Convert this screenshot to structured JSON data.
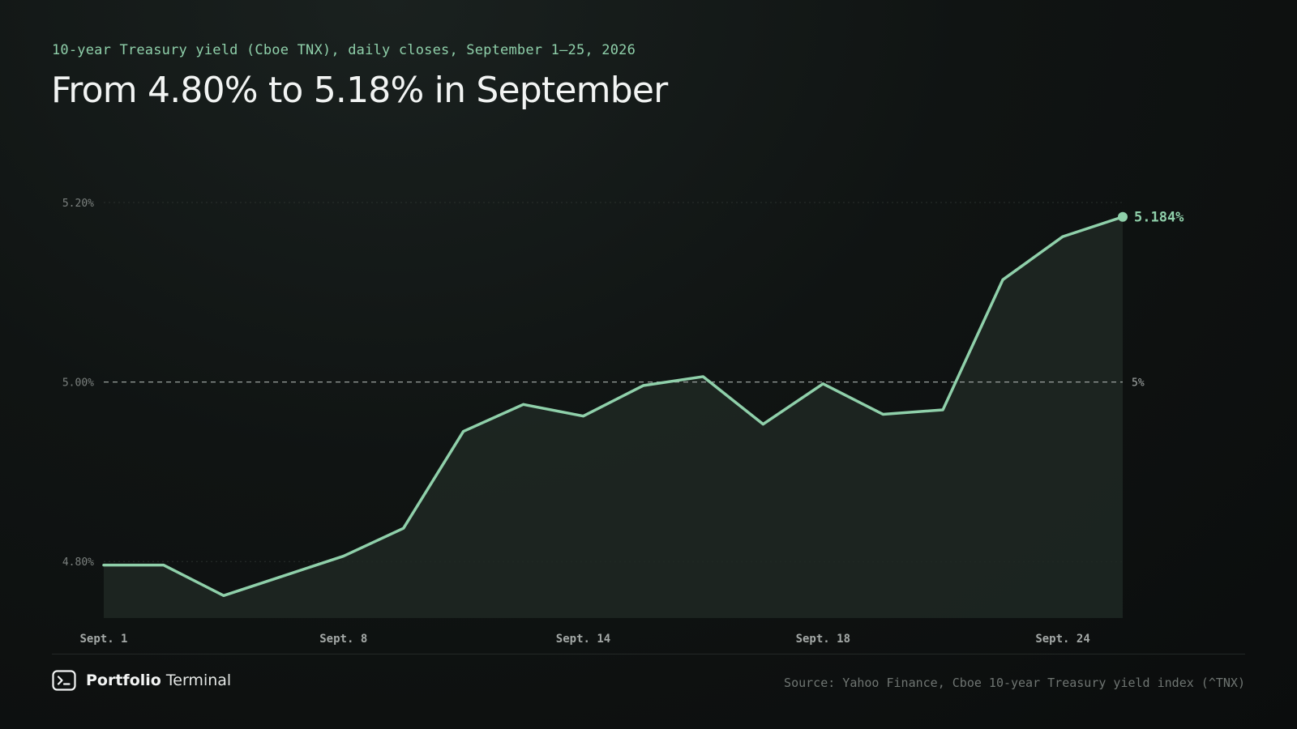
{
  "header": {
    "eyebrow": "10-year Treasury yield (Cboe TNX), daily closes, September 1–25, 2026",
    "headline": "From 4.80% to 5.18% in September"
  },
  "chart_data": {
    "type": "area",
    "title": "From 4.80% to 5.18% in September",
    "subtitle": "10-year Treasury yield (Cboe TNX), daily closes, September 1–25, 2026",
    "x": [
      "Sept. 1",
      "Sept. 2",
      "Sept. 3",
      "Sept. 4",
      "Sept. 8",
      "Sept. 9",
      "Sept. 10",
      "Sept. 11",
      "Sept. 14",
      "Sept. 15",
      "Sept. 16",
      "Sept. 17",
      "Sept. 18",
      "Sept. 21",
      "Sept. 22",
      "Sept. 23",
      "Sept. 24",
      "Sept. 25"
    ],
    "values": [
      4.796,
      4.796,
      4.762,
      4.784,
      4.806,
      4.837,
      4.945,
      4.975,
      4.962,
      4.996,
      5.006,
      4.953,
      4.998,
      4.964,
      4.969,
      5.114,
      5.162,
      5.184
    ],
    "x_tick_labels": [
      "Sept. 1",
      "Sept. 8",
      "Sept. 14",
      "Sept. 18",
      "Sept. 24"
    ],
    "y_ticks": [
      4.8,
      5.0,
      5.2
    ],
    "y_tick_labels": [
      "4.80%",
      "5.00%",
      "5.20%"
    ],
    "ylim": [
      4.737,
      5.2
    ],
    "reference_line": {
      "value": 5.0,
      "label": "5%"
    },
    "end_label": "5.184%",
    "grid": true,
    "colors": {
      "line": "#8fd0aa",
      "area": "#1e2823",
      "reference": "#9aa19e"
    }
  },
  "footer": {
    "brand_strong": "Portfolio",
    "brand_light": "Terminal",
    "brand_icon": "terminal-icon",
    "source": "Source: Yahoo Finance, Cboe 10-year Treasury yield index (^TNX)"
  }
}
